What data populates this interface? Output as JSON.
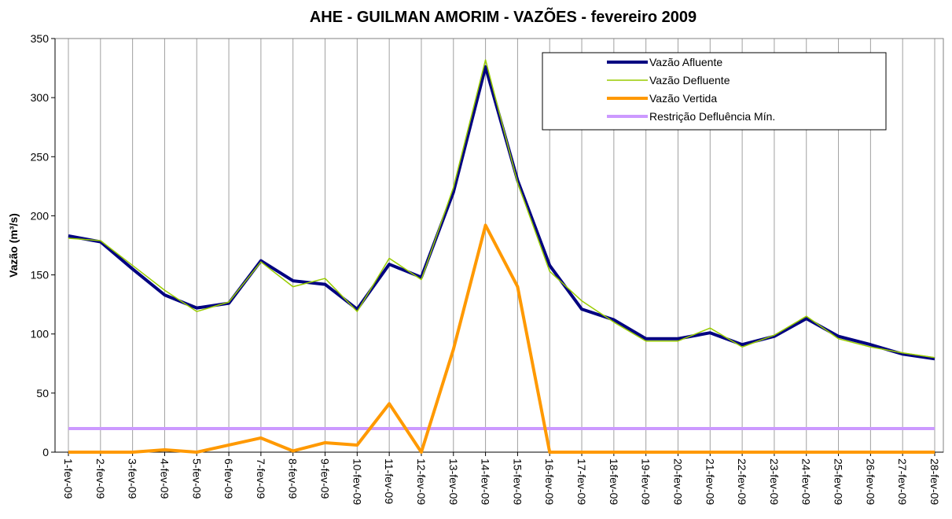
{
  "chart_data": {
    "type": "line",
    "title": "AHE - GUILMAN AMORIM - VAZÕES - fevereiro 2009",
    "y_label": "Vazão (m³/s)",
    "categories": [
      "1-fev-09",
      "2-fev-09",
      "3-fev-09",
      "4-fev-09",
      "5-fev-09",
      "6-fev-09",
      "7-fev-09",
      "8-fev-09",
      "9-fev-09",
      "10-fev-09",
      "11-fev-09",
      "12-fev-09",
      "13-fev-09",
      "14-fev-09",
      "15-fev-09",
      "16-fev-09",
      "17-fev-09",
      "18-fev-09",
      "19-fev-09",
      "20-fev-09",
      "21-fev-09",
      "22-fev-09",
      "23-fev-09",
      "24-fev-09",
      "25-fev-09",
      "26-fev-09",
      "27-fev-09",
      "28-fev-09"
    ],
    "series": [
      {
        "name": "Vazão Afluente",
        "color": "#000080",
        "values": [
          183,
          178,
          155,
          133,
          122,
          126,
          162,
          145,
          142,
          121,
          159,
          148,
          220,
          326,
          230,
          158,
          121,
          112,
          96,
          96,
          101,
          91,
          98,
          113,
          98,
          91,
          83,
          79
        ]
      },
      {
        "name": "Vazão Defluente",
        "color": "#99cc00",
        "values": [
          181,
          179,
          158,
          137,
          119,
          127,
          161,
          140,
          147,
          119,
          164,
          146,
          224,
          332,
          228,
          153,
          128,
          110,
          94,
          94,
          105,
          89,
          99,
          115,
          96,
          89,
          84,
          80
        ]
      },
      {
        "name": "Vazão Vertida",
        "color": "#ff9900",
        "values": [
          0,
          0,
          0,
          2,
          0,
          6,
          12,
          1,
          8,
          6,
          41,
          0,
          87,
          192,
          140,
          0,
          0,
          0,
          0,
          0,
          0,
          0,
          0,
          0,
          0,
          0,
          0,
          0
        ]
      },
      {
        "name": "Restrição Defluência Mín.",
        "color": "#cc99ff",
        "values": [
          20,
          20,
          20,
          20,
          20,
          20,
          20,
          20,
          20,
          20,
          20,
          20,
          20,
          20,
          20,
          20,
          20,
          20,
          20,
          20,
          20,
          20,
          20,
          20,
          20,
          20,
          20,
          20
        ]
      }
    ],
    "ylim": [
      0,
      350
    ],
    "yticks": [
      0,
      50,
      100,
      150,
      200,
      250,
      300,
      350
    ],
    "grid": true
  }
}
